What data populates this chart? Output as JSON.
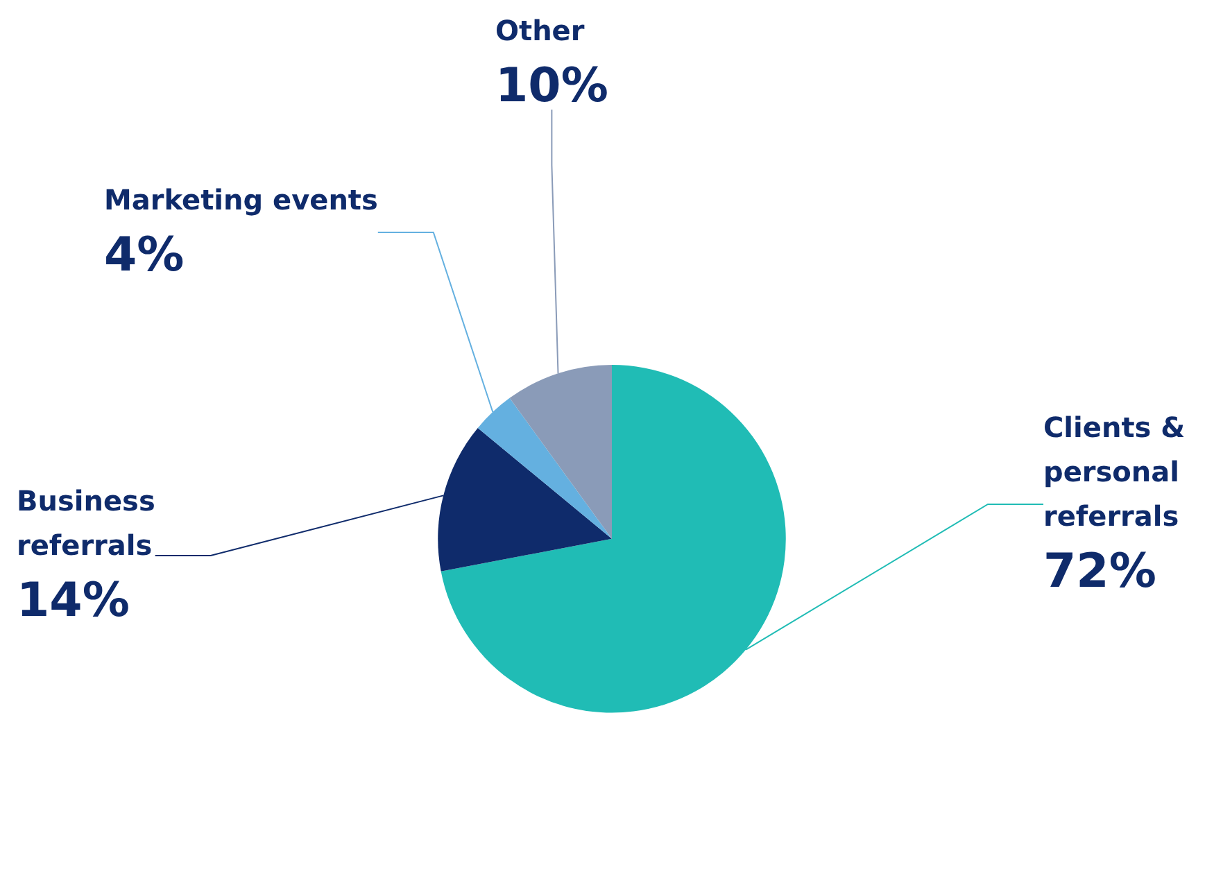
{
  "chart_data": {
    "type": "pie",
    "categories": [
      "Clients & personal referrals",
      "Business referrals",
      "Marketing events",
      "Other"
    ],
    "values": [
      72,
      14,
      4,
      10
    ],
    "colors": [
      "#20bcb5",
      "#0f2b6b",
      "#64b0e0",
      "#8a9bb8"
    ],
    "value_labels": [
      "72%",
      "14%",
      "4%",
      "10%"
    ]
  }
}
